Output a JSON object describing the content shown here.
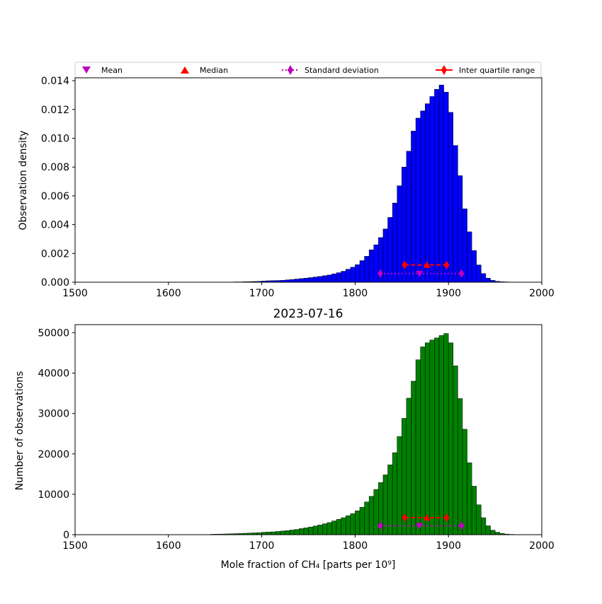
{
  "legend": {
    "placement": "top",
    "items": [
      {
        "label": "Mean",
        "marker": "triangle-down",
        "color": "#bf00bf"
      },
      {
        "label": "Median",
        "marker": "triangle-up",
        "color": "#ff0000"
      },
      {
        "label": "Standard deviation",
        "marker": "diamond",
        "line": "dotted",
        "color": "#bf00bf"
      },
      {
        "label": "Inter quartile range",
        "marker": "diamond",
        "line": "solid",
        "color": "#ff0000"
      }
    ]
  },
  "chart_data": [
    {
      "type": "bar",
      "xlabel": "",
      "ylabel": "Observation density",
      "xlim": [
        1500,
        2000
      ],
      "ylim": [
        0,
        0.0142
      ],
      "xticks": [
        1500,
        1600,
        1700,
        1800,
        1900,
        2000
      ],
      "yticks": [
        0.0,
        0.002,
        0.004,
        0.006,
        0.008,
        0.01,
        0.012,
        0.014
      ],
      "ytick_labels": [
        "0.000",
        "0.002",
        "0.004",
        "0.006",
        "0.008",
        "0.010",
        "0.012",
        "0.014"
      ],
      "bar_color": "#0000ff",
      "bin_width": 5,
      "bin_starts": [
        1665,
        1670,
        1675,
        1680,
        1685,
        1690,
        1695,
        1700,
        1705,
        1710,
        1715,
        1720,
        1725,
        1730,
        1735,
        1740,
        1745,
        1750,
        1755,
        1760,
        1765,
        1770,
        1775,
        1780,
        1785,
        1790,
        1795,
        1800,
        1805,
        1810,
        1815,
        1820,
        1825,
        1830,
        1835,
        1840,
        1845,
        1850,
        1855,
        1860,
        1865,
        1870,
        1875,
        1880,
        1885,
        1890,
        1895,
        1900,
        1905,
        1910,
        1915,
        1920,
        1925,
        1930,
        1935,
        1940,
        1945,
        1950,
        1955,
        1960,
        1965,
        1970
      ],
      "values": [
        1e-05,
        2e-05,
        2e-05,
        3e-05,
        4e-05,
        5e-05,
        6e-05,
        8e-05,
        0.0001,
        0.00011,
        0.00012,
        0.00013,
        0.00016,
        0.00019,
        0.00022,
        0.00025,
        0.00028,
        0.00032,
        0.00036,
        0.0004,
        0.00045,
        0.0005,
        0.00058,
        0.00066,
        0.00076,
        0.0009,
        0.00104,
        0.00122,
        0.0015,
        0.0018,
        0.00225,
        0.0026,
        0.0031,
        0.0037,
        0.0045,
        0.0055,
        0.0067,
        0.008,
        0.0091,
        0.0105,
        0.0114,
        0.0119,
        0.0124,
        0.0129,
        0.0134,
        0.0137,
        0.0132,
        0.0118,
        0.0095,
        0.0074,
        0.0051,
        0.0035,
        0.0022,
        0.0012,
        0.0006,
        0.00028,
        0.00013,
        6e-05,
        3e-05,
        2e-05,
        1e-05,
        1e-05
      ],
      "stats": {
        "mean": {
          "x": 1869,
          "y": 0.0006
        },
        "median": {
          "x": 1877,
          "y": 0.0012
        },
        "std_range": {
          "x": [
            1827,
            1914
          ],
          "y": 0.0006
        },
        "iqr_range": {
          "x": [
            1853,
            1898
          ],
          "y": 0.0012
        }
      }
    },
    {
      "type": "bar",
      "title": "2023-07-16",
      "xlabel": "Mole fraction of CH₄ [parts per 10⁹]",
      "ylabel": "Number of observations",
      "xlim": [
        1500,
        2000
      ],
      "ylim": [
        0,
        52000
      ],
      "xticks": [
        1500,
        1600,
        1700,
        1800,
        1900,
        2000
      ],
      "yticks": [
        0,
        10000,
        20000,
        30000,
        40000,
        50000
      ],
      "ytick_labels": [
        "0",
        "10000",
        "20000",
        "30000",
        "40000",
        "50000"
      ],
      "bar_color": "#008000",
      "bin_width": 5,
      "bin_starts": [
        1645,
        1650,
        1655,
        1660,
        1665,
        1670,
        1675,
        1680,
        1685,
        1690,
        1695,
        1700,
        1705,
        1710,
        1715,
        1720,
        1725,
        1730,
        1735,
        1740,
        1745,
        1750,
        1755,
        1760,
        1765,
        1770,
        1775,
        1780,
        1785,
        1790,
        1795,
        1800,
        1805,
        1810,
        1815,
        1820,
        1825,
        1830,
        1835,
        1840,
        1845,
        1850,
        1855,
        1860,
        1865,
        1870,
        1875,
        1880,
        1885,
        1890,
        1895,
        1900,
        1905,
        1910,
        1915,
        1920,
        1925,
        1930,
        1935,
        1940,
        1945,
        1950,
        1955,
        1960,
        1965,
        1970
      ],
      "values": [
        100,
        120,
        150,
        180,
        220,
        260,
        300,
        350,
        400,
        450,
        500,
        600,
        650,
        700,
        800,
        900,
        1000,
        1150,
        1300,
        1500,
        1700,
        1900,
        2150,
        2400,
        2700,
        3000,
        3400,
        3800,
        4200,
        4700,
        5200,
        5900,
        6800,
        8100,
        9500,
        11200,
        12900,
        14800,
        17300,
        20300,
        24300,
        28800,
        33800,
        38000,
        43300,
        46500,
        47500,
        48200,
        48700,
        49300,
        49800,
        47500,
        41800,
        33700,
        26100,
        17800,
        12000,
        7400,
        4200,
        2200,
        1100,
        600,
        300,
        150,
        80,
        40
      ],
      "stats": {
        "mean": {
          "x": 1869,
          "y": 2200
        },
        "median": {
          "x": 1877,
          "y": 4200
        },
        "std_range": {
          "x": [
            1827,
            1914
          ],
          "y": 2200
        },
        "iqr_range": {
          "x": [
            1853,
            1898
          ],
          "y": 4200
        }
      }
    }
  ]
}
